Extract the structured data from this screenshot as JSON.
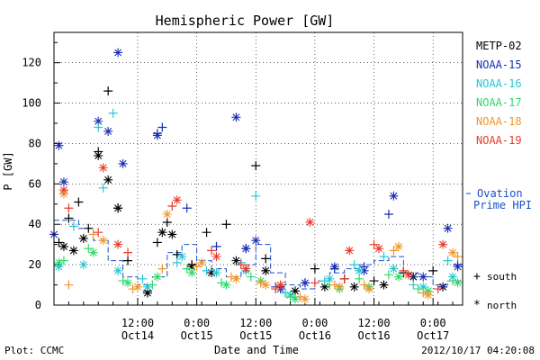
{
  "chart_data": {
    "type": "scatter",
    "title": "Hemispheric Power [GW]",
    "ylabel": "P [GW]",
    "xlabel": "Date and Time",
    "ylim": [
      0,
      135
    ],
    "xlim": [
      "2012-10-13 19:00",
      "2012-10-17 06:00"
    ],
    "yticks": [
      0,
      20,
      40,
      60,
      80,
      100,
      120
    ],
    "xticks": [
      {
        "t": "2012-10-14 12:00",
        "top": "12:00",
        "bottom": "Oct14"
      },
      {
        "t": "2012-10-15 00:00",
        "top": "0:00",
        "bottom": "Oct15"
      },
      {
        "t": "2012-10-15 12:00",
        "top": "12:00",
        "bottom": "Oct15"
      },
      {
        "t": "2012-10-16 00:00",
        "top": "0:00",
        "bottom": "Oct16"
      },
      {
        "t": "2012-10-16 12:00",
        "top": "12:00",
        "bottom": "Oct16"
      },
      {
        "t": "2012-10-17 00:00",
        "top": "0:00",
        "bottom": "Oct17"
      }
    ],
    "grid": true,
    "legend_position": "right",
    "series": [
      {
        "name": "METP-02",
        "color": "#000000",
        "south": [
          [
            "2012-10-13 20:00",
            31
          ],
          [
            "2012-10-13 22:00",
            43
          ],
          [
            "2012-10-14 00:00",
            51
          ],
          [
            "2012-10-14 02:00",
            38
          ],
          [
            "2012-10-14 04:00",
            76
          ],
          [
            "2012-10-14 06:00",
            106
          ],
          [
            "2012-10-14 08:00",
            48
          ],
          [
            "2012-10-14 10:00",
            22
          ],
          [
            "2012-10-14 14:00",
            7
          ],
          [
            "2012-10-14 16:00",
            31
          ],
          [
            "2012-10-14 18:00",
            41
          ],
          [
            "2012-10-14 20:00",
            25
          ],
          [
            "2012-10-14 23:00",
            20
          ],
          [
            "2012-10-15 02:00",
            36
          ],
          [
            "2012-10-15 06:00",
            40
          ],
          [
            "2012-10-15 12:00",
            69
          ],
          [
            "2012-10-15 14:00",
            23
          ],
          [
            "2012-10-15 17:00",
            9
          ],
          [
            "2012-10-16 00:00",
            18
          ],
          [
            "2012-10-16 06:00",
            13
          ],
          [
            "2012-10-16 12:00",
            12
          ],
          [
            "2012-10-16 18:00",
            16
          ],
          [
            "2012-10-17 00:00",
            17
          ]
        ],
        "north": [
          [
            "2012-10-13 21:00",
            29
          ],
          [
            "2012-10-13 23:00",
            27
          ],
          [
            "2012-10-14 01:00",
            33
          ],
          [
            "2012-10-14 04:00",
            74
          ],
          [
            "2012-10-14 06:00",
            62
          ],
          [
            "2012-10-14 08:00",
            48
          ],
          [
            "2012-10-14 14:00",
            6
          ],
          [
            "2012-10-14 17:00",
            36
          ],
          [
            "2012-10-14 19:00",
            35
          ],
          [
            "2012-10-14 23:00",
            19
          ],
          [
            "2012-10-15 03:00",
            16
          ],
          [
            "2012-10-15 08:00",
            22
          ],
          [
            "2012-10-15 14:00",
            17
          ],
          [
            "2012-10-15 20:00",
            7
          ],
          [
            "2012-10-16 02:00",
            9
          ],
          [
            "2012-10-16 08:00",
            9
          ],
          [
            "2012-10-16 14:00",
            10
          ],
          [
            "2012-10-16 20:00",
            14
          ],
          [
            "2012-10-17 02:00",
            9
          ]
        ]
      },
      {
        "name": "NOAA-15",
        "color": "#1a2eb5",
        "south": [
          [
            "2012-10-14 16:00",
            85
          ],
          [
            "2012-10-14 17:00",
            88
          ],
          [
            "2012-10-14 22:00",
            48
          ],
          [
            "2012-10-15 04:00",
            29
          ],
          [
            "2012-10-15 10:00",
            28
          ],
          [
            "2012-10-15 16:00",
            9
          ],
          [
            "2012-10-15 22:00",
            11
          ],
          [
            "2012-10-16 04:00",
            18
          ],
          [
            "2012-10-16 10:00",
            19
          ],
          [
            "2012-10-16 15:00",
            45
          ],
          [
            "2012-10-16 20:00",
            14
          ],
          [
            "2012-10-17 02:00",
            9
          ],
          [
            "2012-10-17 05:00",
            20
          ]
        ],
        "north": [
          [
            "2012-10-13 19:00",
            35
          ],
          [
            "2012-10-13 20:00",
            79
          ],
          [
            "2012-10-13 21:00",
            61
          ],
          [
            "2012-10-14 04:00",
            91
          ],
          [
            "2012-10-14 06:00",
            86
          ],
          [
            "2012-10-14 09:00",
            70
          ],
          [
            "2012-10-14 08:00",
            125
          ],
          [
            "2012-10-14 16:00",
            84
          ],
          [
            "2012-10-15 08:00",
            93
          ],
          [
            "2012-10-15 10:00",
            28
          ],
          [
            "2012-10-15 12:00",
            32
          ],
          [
            "2012-10-15 17:00",
            8
          ],
          [
            "2012-10-15 22:00",
            11
          ],
          [
            "2012-10-16 04:00",
            19
          ],
          [
            "2012-10-16 10:00",
            17
          ],
          [
            "2012-10-16 16:00",
            54
          ],
          [
            "2012-10-16 22:00",
            14
          ],
          [
            "2012-10-17 03:00",
            38
          ],
          [
            "2012-10-17 05:00",
            19
          ]
        ]
      },
      {
        "name": "NOAA-16",
        "color": "#27c6d6",
        "south": [
          [
            "2012-10-13 23:00",
            39
          ],
          [
            "2012-10-14 05:00",
            58
          ],
          [
            "2012-10-14 07:00",
            95
          ],
          [
            "2012-10-14 04:00",
            88
          ],
          [
            "2012-10-14 13:00",
            13
          ],
          [
            "2012-10-14 20:00",
            21
          ],
          [
            "2012-10-15 02:00",
            17
          ],
          [
            "2012-10-15 09:00",
            21
          ],
          [
            "2012-10-15 12:00",
            54
          ],
          [
            "2012-10-15 18:00",
            6
          ],
          [
            "2012-10-16 02:00",
            12
          ],
          [
            "2012-10-16 08:00",
            20
          ],
          [
            "2012-10-16 14:00",
            24
          ],
          [
            "2012-10-16 20:00",
            10
          ],
          [
            "2012-10-17 03:00",
            22
          ]
        ],
        "north": [
          [
            "2012-10-13 20:00",
            19
          ],
          [
            "2012-10-14 01:00",
            20
          ],
          [
            "2012-10-14 08:00",
            17
          ],
          [
            "2012-10-14 14:00",
            9
          ],
          [
            "2012-10-14 21:00",
            24
          ],
          [
            "2012-10-15 04:00",
            16
          ],
          [
            "2012-10-15 10:00",
            17
          ],
          [
            "2012-10-15 19:00",
            5
          ],
          [
            "2012-10-16 03:00",
            13
          ],
          [
            "2012-10-16 09:00",
            17
          ],
          [
            "2012-10-16 16:00",
            18
          ],
          [
            "2012-10-16 22:00",
            9
          ],
          [
            "2012-10-17 04:00",
            14
          ]
        ]
      },
      {
        "name": "NOAA-17",
        "color": "#2fd86a",
        "south": [
          [
            "2012-10-13 21:00",
            22
          ],
          [
            "2012-10-14 02:00",
            28
          ],
          [
            "2012-10-14 09:00",
            12
          ],
          [
            "2012-10-14 15:00",
            10
          ],
          [
            "2012-10-14 22:00",
            18
          ],
          [
            "2012-10-15 05:00",
            11
          ],
          [
            "2012-10-15 11:00",
            14
          ],
          [
            "2012-10-15 19:00",
            4
          ],
          [
            "2012-10-16 03:00",
            10
          ],
          [
            "2012-10-16 09:00",
            13
          ],
          [
            "2012-10-16 15:00",
            15
          ],
          [
            "2012-10-16 21:00",
            8
          ],
          [
            "2012-10-17 04:00",
            12
          ]
        ],
        "north": [
          [
            "2012-10-13 20:00",
            21
          ],
          [
            "2012-10-14 03:00",
            26
          ],
          [
            "2012-10-14 10:00",
            11
          ],
          [
            "2012-10-14 16:00",
            14
          ],
          [
            "2012-10-14 23:00",
            16
          ],
          [
            "2012-10-15 06:00",
            10
          ],
          [
            "2012-10-15 13:00",
            12
          ],
          [
            "2012-10-15 20:00",
            3
          ],
          [
            "2012-10-16 05:00",
            8
          ],
          [
            "2012-10-16 11:00",
            9
          ],
          [
            "2012-10-16 17:00",
            14
          ],
          [
            "2012-10-16 23:00",
            7
          ],
          [
            "2012-10-17 05:00",
            11
          ]
        ]
      },
      {
        "name": "NOAA-18",
        "color": "#f0962a",
        "south": [
          [
            "2012-10-13 22:00",
            10
          ],
          [
            "2012-10-14 03:00",
            35
          ],
          [
            "2012-10-14 11:00",
            8
          ],
          [
            "2012-10-14 17:00",
            18
          ],
          [
            "2012-10-15 00:00",
            19
          ],
          [
            "2012-10-15 07:00",
            14
          ],
          [
            "2012-10-15 13:00",
            11
          ],
          [
            "2012-10-15 21:00",
            4
          ],
          [
            "2012-10-16 04:00",
            10
          ],
          [
            "2012-10-16 10:00",
            10
          ],
          [
            "2012-10-16 16:00",
            27
          ],
          [
            "2012-10-16 22:00",
            6
          ],
          [
            "2012-10-17 05:00",
            24
          ]
        ],
        "north": [
          [
            "2012-10-13 21:00",
            55
          ],
          [
            "2012-10-14 05:00",
            32
          ],
          [
            "2012-10-14 12:00",
            9
          ],
          [
            "2012-10-14 18:00",
            45
          ],
          [
            "2012-10-15 01:00",
            21
          ],
          [
            "2012-10-15 08:00",
            13
          ],
          [
            "2012-10-15 14:00",
            10
          ],
          [
            "2012-10-15 22:00",
            3
          ],
          [
            "2012-10-16 05:00",
            9
          ],
          [
            "2012-10-16 11:00",
            8
          ],
          [
            "2012-10-16 17:00",
            29
          ],
          [
            "2012-10-16 23:00",
            5
          ],
          [
            "2012-10-17 04:00",
            26
          ]
        ]
      },
      {
        "name": "NOAA-19",
        "color": "#e83a2a",
        "south": [
          [
            "2012-10-13 22:00",
            48
          ],
          [
            "2012-10-14 04:00",
            36
          ],
          [
            "2012-10-14 10:00",
            26
          ],
          [
            "2012-10-14 19:00",
            49
          ],
          [
            "2012-10-15 03:00",
            27
          ],
          [
            "2012-10-15 09:00",
            20
          ],
          [
            "2012-10-15 16:00",
            8
          ],
          [
            "2012-10-16 00:00",
            11
          ],
          [
            "2012-10-16 06:00",
            13
          ],
          [
            "2012-10-16 12:00",
            30
          ],
          [
            "2012-10-16 18:00",
            17
          ],
          [
            "2012-10-17 01:00",
            8
          ]
        ],
        "north": [
          [
            "2012-10-13 21:00",
            57
          ],
          [
            "2012-10-14 05:00",
            68
          ],
          [
            "2012-10-14 08:00",
            30
          ],
          [
            "2012-10-14 20:00",
            52
          ],
          [
            "2012-10-15 04:00",
            24
          ],
          [
            "2012-10-15 10:00",
            18
          ],
          [
            "2012-10-15 17:00",
            10
          ],
          [
            "2012-10-15 23:00",
            41
          ],
          [
            "2012-10-16 07:00",
            27
          ],
          [
            "2012-10-16 13:00",
            28
          ],
          [
            "2012-10-16 19:00",
            15
          ],
          [
            "2012-10-17 02:00",
            30
          ]
        ]
      }
    ],
    "ovation": {
      "name_line1": "Ovation",
      "name_line2": "Prime HPI",
      "color": "#1a50c8",
      "points": [
        [
          "2012-10-13 19:00",
          42
        ],
        [
          "2012-10-14 00:00",
          38
        ],
        [
          "2012-10-14 03:00",
          32
        ],
        [
          "2012-10-14 06:00",
          22
        ],
        [
          "2012-10-14 09:00",
          14
        ],
        [
          "2012-10-14 12:00",
          10
        ],
        [
          "2012-10-14 15:00",
          14
        ],
        [
          "2012-10-14 18:00",
          26
        ],
        [
          "2012-10-14 21:00",
          30
        ],
        [
          "2012-10-15 00:00",
          22
        ],
        [
          "2012-10-15 03:00",
          18
        ],
        [
          "2012-10-15 06:00",
          14
        ],
        [
          "2012-10-15 09:00",
          20
        ],
        [
          "2012-10-15 12:00",
          30
        ],
        [
          "2012-10-15 15:00",
          16
        ],
        [
          "2012-10-15 18:00",
          10
        ],
        [
          "2012-10-15 21:00",
          8
        ],
        [
          "2012-10-16 00:00",
          12
        ],
        [
          "2012-10-16 03:00",
          16
        ],
        [
          "2012-10-16 06:00",
          18
        ],
        [
          "2012-10-16 09:00",
          20
        ],
        [
          "2012-10-16 12:00",
          22
        ],
        [
          "2012-10-16 15:00",
          24
        ],
        [
          "2012-10-16 18:00",
          16
        ],
        [
          "2012-10-16 21:00",
          14
        ],
        [
          "2012-10-17 00:00",
          10
        ],
        [
          "2012-10-17 03:00",
          12
        ],
        [
          "2012-10-17 06:00",
          14
        ]
      ]
    },
    "markers": {
      "south_symbol": "+",
      "south_label": "south",
      "north_symbol": "*",
      "north_label": "north"
    }
  },
  "footer": {
    "plot_by": "Plot: CCMC",
    "timestamp": "2012/10/17 04:20:08"
  }
}
